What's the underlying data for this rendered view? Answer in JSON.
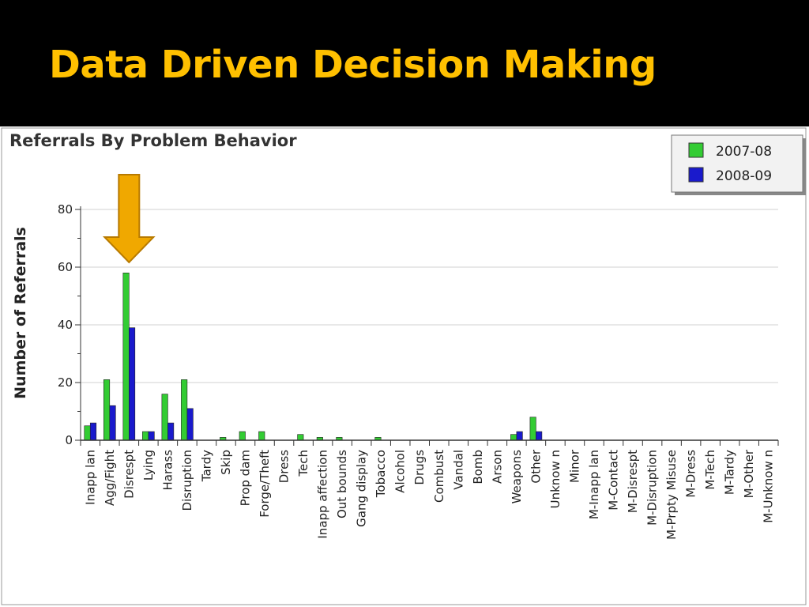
{
  "slide": {
    "title": "Data Driven Decision Making",
    "title_color": "#FFC000",
    "background": "#000000"
  },
  "chart_data": {
    "type": "bar",
    "title": "Referrals By Problem Behavior",
    "xlabel": "",
    "ylabel": "Number of Referrals",
    "ylim": [
      0,
      80
    ],
    "yticks": [
      0,
      20,
      40,
      60,
      80
    ],
    "grid": true,
    "legend_position": "top-right",
    "categories": [
      "Inapp lan",
      "Agg/Fight",
      "Disrespt",
      "Lying",
      "Harass",
      "Disruption",
      "Tardy",
      "Skip",
      "Prop dam",
      "Forge/Theft",
      "Dress",
      "Tech",
      "Inapp affection",
      "Out bounds",
      "Gang display",
      "Tobacco",
      "Alcohol",
      "Drugs",
      "Combust",
      "Vandal",
      "Bomb",
      "Arson",
      "Weapons",
      "Other",
      "Unknow n",
      "Minor",
      "M-Inapp lan",
      "M-Contact",
      "M-Disrespt",
      "M-Disruption",
      "M-Prpty Misuse",
      "M-Dress",
      "M-Tech",
      "M-Tardy",
      "M-Other",
      "M-Unknow n"
    ],
    "series": [
      {
        "name": "2007-08",
        "color": "#33CC33",
        "values": [
          5,
          21,
          58,
          3,
          16,
          21,
          0,
          1,
          3,
          3,
          0,
          2,
          1,
          1,
          0,
          1,
          0,
          0,
          0,
          0,
          0,
          0,
          2,
          8,
          0,
          0,
          0,
          0,
          0,
          0,
          0,
          0,
          0,
          0,
          0,
          0
        ]
      },
      {
        "name": "2008-09",
        "color": "#1A1ACC",
        "values": [
          6,
          12,
          39,
          3,
          6,
          11,
          0,
          0,
          0,
          0,
          0,
          0,
          0,
          0,
          0,
          0,
          0,
          0,
          0,
          0,
          0,
          0,
          3,
          3,
          0,
          0,
          0,
          0,
          0,
          0,
          0,
          0,
          0,
          0,
          0,
          0
        ]
      }
    ],
    "annotation": {
      "type": "arrow",
      "target_category": "Disrespt",
      "color": "#F0A800",
      "icon": "down-arrow-icon"
    }
  }
}
